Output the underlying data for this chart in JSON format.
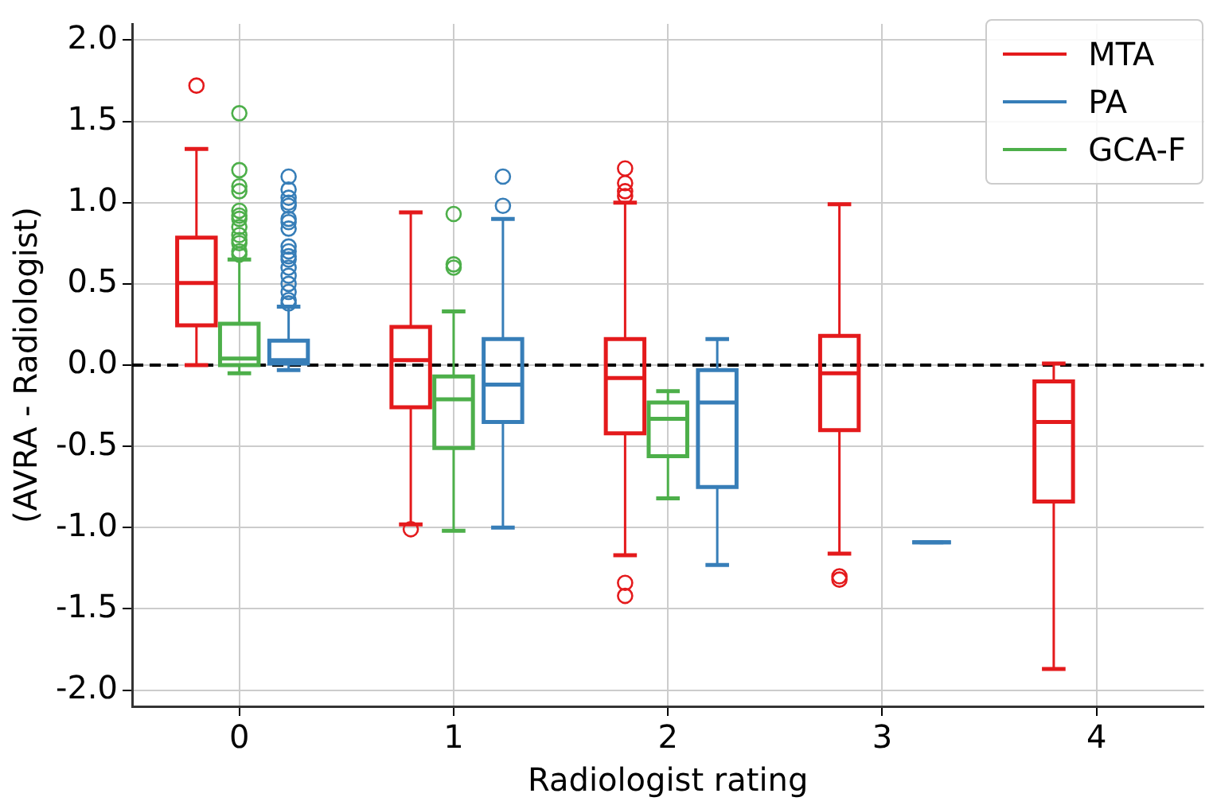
{
  "chart_data": {
    "type": "box",
    "xlabel": "Radiologist rating",
    "ylabel": "(AVRA - Radiologist)",
    "categories": [
      "0",
      "1",
      "2",
      "3",
      "4"
    ],
    "ylim": [
      -2.1,
      2.1
    ],
    "yticks": [
      {
        "value": -2,
        "label": "-2.0"
      },
      {
        "value": -1.5,
        "label": "-1.5"
      },
      {
        "value": -1,
        "label": "-1.0"
      },
      {
        "value": -0.5,
        "label": "-0.5"
      },
      {
        "value": 0,
        "label": "0.0"
      },
      {
        "value": 0.5,
        "label": "0.5"
      },
      {
        "value": 1,
        "label": "1.0"
      },
      {
        "value": 1.5,
        "label": "1.5"
      },
      {
        "value": 2,
        "label": "2.0"
      }
    ],
    "grid": true,
    "legend": "top right",
    "marker": "circle",
    "ref_lines": [
      {
        "axis": "y",
        "value": 0,
        "color": "#000000",
        "line_style": "dashed"
      }
    ],
    "series": [
      {
        "name": "MTA",
        "color": "#e41a1c",
        "boxes": [
          {
            "low": 0,
            "q1": 0.245,
            "median": 0.505,
            "q3": 0.785,
            "high": 1.33,
            "outliers": [
              1.72
            ]
          },
          {
            "low": -0.98,
            "q1": -0.26,
            "median": 0.03,
            "q3": 0.235,
            "high": 0.94,
            "outliers": [
              -1.01
            ]
          },
          {
            "low": -1.17,
            "q1": -0.42,
            "median": -0.08,
            "q3": 0.16,
            "high": 1.0,
            "outliers": [
              1.21,
              1.12,
              1.07,
              1.04,
              -1.34,
              -1.42
            ]
          },
          {
            "low": -1.16,
            "q1": -0.4,
            "median": -0.05,
            "q3": 0.18,
            "high": 0.99,
            "outliers": [
              -1.3,
              -1.32
            ]
          },
          {
            "low": -1.87,
            "q1": -0.84,
            "median": -0.35,
            "q3": -0.1,
            "high": 0.01
          }
        ]
      },
      {
        "name": "PA",
        "color": "#377eb8",
        "boxes": [
          {
            "low": -0.03,
            "q1": 0.01,
            "median": 0.03,
            "q3": 0.15,
            "high": 0.36,
            "outliers": [
              1.16,
              1.08,
              1.03,
              1.0,
              0.98,
              0.9,
              0.88,
              0.84,
              0.73,
              0.7,
              0.67,
              0.65,
              0.6,
              0.55,
              0.5,
              0.45,
              0.4,
              0.38
            ]
          },
          {
            "low": -1.0,
            "q1": -0.35,
            "median": -0.12,
            "q3": 0.16,
            "high": 0.9,
            "outliers": [
              1.16,
              0.98
            ]
          },
          {
            "low": -1.23,
            "q1": -0.75,
            "median": -0.23,
            "q3": -0.03,
            "high": 0.16
          },
          {
            "low": -1.09,
            "q1": -1.09,
            "median": -1.09,
            "q3": -1.09,
            "high": -1.09
          },
          null
        ]
      },
      {
        "name": "GCA-F",
        "color": "#4daf4a",
        "boxes": [
          {
            "low": -0.05,
            "q1": 0.0,
            "median": 0.04,
            "q3": 0.255,
            "high": 0.65,
            "outliers": [
              1.55,
              1.2,
              1.1,
              1.07,
              0.95,
              0.92,
              0.9,
              0.85,
              0.8,
              0.77,
              0.75,
              0.7,
              0.68
            ]
          },
          {
            "low": -1.02,
            "q1": -0.51,
            "median": -0.21,
            "q3": -0.07,
            "high": 0.33,
            "outliers": [
              0.93,
              0.62,
              0.6
            ]
          },
          {
            "low": -0.82,
            "q1": -0.56,
            "median": -0.33,
            "q3": -0.23,
            "high": -0.16
          },
          null,
          null
        ]
      }
    ]
  }
}
